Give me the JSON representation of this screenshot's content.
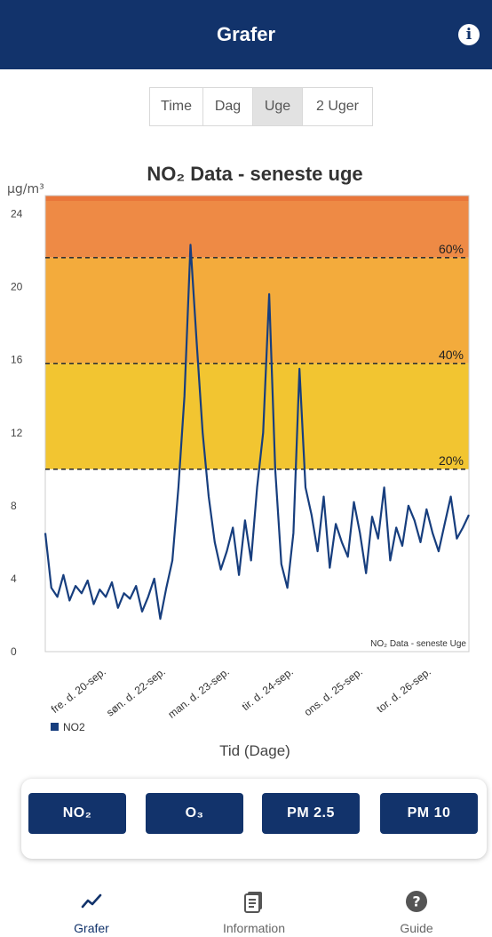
{
  "header": {
    "title": "Grafer",
    "info_icon": "info-circle-icon"
  },
  "period_tabs": [
    {
      "label": "Time",
      "selected": false
    },
    {
      "label": "Dag",
      "selected": false
    },
    {
      "label": "Uge",
      "selected": true
    },
    {
      "label": "2 Uger",
      "selected": false
    }
  ],
  "chart_data": {
    "type": "line",
    "title": "NO₂ Data - seneste uge",
    "ylabel": "μg/m³",
    "xlabel": "Tid (Dage)",
    "ylim": [
      0,
      25
    ],
    "yticks": [
      0,
      4,
      8,
      12,
      16,
      20,
      24
    ],
    "categories": [
      "fre. d. 20-sep.",
      "søn. d. 22-sep.",
      "man. d. 23-sep.",
      "tir. d. 24-sep.",
      "ons. d. 25-sep.",
      "tor. d. 26-sep."
    ],
    "threshold_lines": [
      {
        "label": "20%",
        "value": 10
      },
      {
        "label": "40%",
        "value": 15.8
      },
      {
        "label": "60%",
        "value": 21.6
      }
    ],
    "bands": [
      {
        "from": 10,
        "to": 15.8,
        "color": "#f2c531"
      },
      {
        "from": 15.8,
        "to": 21.6,
        "color": "#f3ab3c"
      },
      {
        "from": 21.6,
        "to": 25,
        "color": "#ee8a45"
      }
    ],
    "watermark": "NO₂ Data - seneste Uge",
    "series": [
      {
        "name": "NO2",
        "color": "#173e7e",
        "x": [
          0,
          0.1,
          0.2,
          0.3,
          0.4,
          0.5,
          0.6,
          0.7,
          0.8,
          0.9,
          1.0,
          1.1,
          1.2,
          1.3,
          1.4,
          1.5,
          1.6,
          1.7,
          1.8,
          1.9,
          2.0,
          2.1,
          2.2,
          2.3,
          2.4,
          2.5,
          2.6,
          2.7,
          2.8,
          2.9,
          3.0,
          3.1,
          3.2,
          3.3,
          3.4,
          3.5,
          3.6,
          3.7,
          3.8,
          3.9,
          4.0,
          4.1,
          4.2,
          4.3,
          4.4,
          4.5,
          4.6,
          4.7,
          4.8,
          4.9,
          5.0,
          5.1,
          5.2,
          5.3,
          5.4,
          5.5,
          5.6,
          5.7,
          5.8,
          5.9,
          6.0,
          6.1,
          6.2,
          6.3,
          6.4,
          6.5,
          6.6,
          6.7,
          6.8,
          6.9,
          7.0
        ],
        "y": [
          6.5,
          3.5,
          3.0,
          4.2,
          2.8,
          3.6,
          3.2,
          3.9,
          2.6,
          3.4,
          3.0,
          3.8,
          2.4,
          3.2,
          2.9,
          3.6,
          2.2,
          3.0,
          4.0,
          1.8,
          3.5,
          5.0,
          9.0,
          14.0,
          22.3,
          17.0,
          12.0,
          8.5,
          6.0,
          4.5,
          5.5,
          6.8,
          4.2,
          7.2,
          5.0,
          9.0,
          12.0,
          19.6,
          10.0,
          4.8,
          3.5,
          6.5,
          15.5,
          9.0,
          7.5,
          5.5,
          8.5,
          4.6,
          7.0,
          6.0,
          5.2,
          8.2,
          6.5,
          4.3,
          7.4,
          6.2,
          9.0,
          5.0,
          6.8,
          5.8,
          8.0,
          7.2,
          6.0,
          7.8,
          6.5,
          5.5,
          7.0,
          8.5,
          6.2,
          6.8,
          7.5
        ]
      }
    ],
    "legend": {
      "position": "bottom-left"
    }
  },
  "pollutant_buttons": [
    {
      "label": "NO₂"
    },
    {
      "label": "O₃"
    },
    {
      "label": "PM 2.5"
    },
    {
      "label": "PM 10"
    }
  ],
  "bottom_nav": [
    {
      "label": "Grafer",
      "icon": "line-chart-icon",
      "active": true
    },
    {
      "label": "Information",
      "icon": "document-icon",
      "active": false
    },
    {
      "label": "Guide",
      "icon": "help-circle-icon",
      "active": false
    }
  ]
}
